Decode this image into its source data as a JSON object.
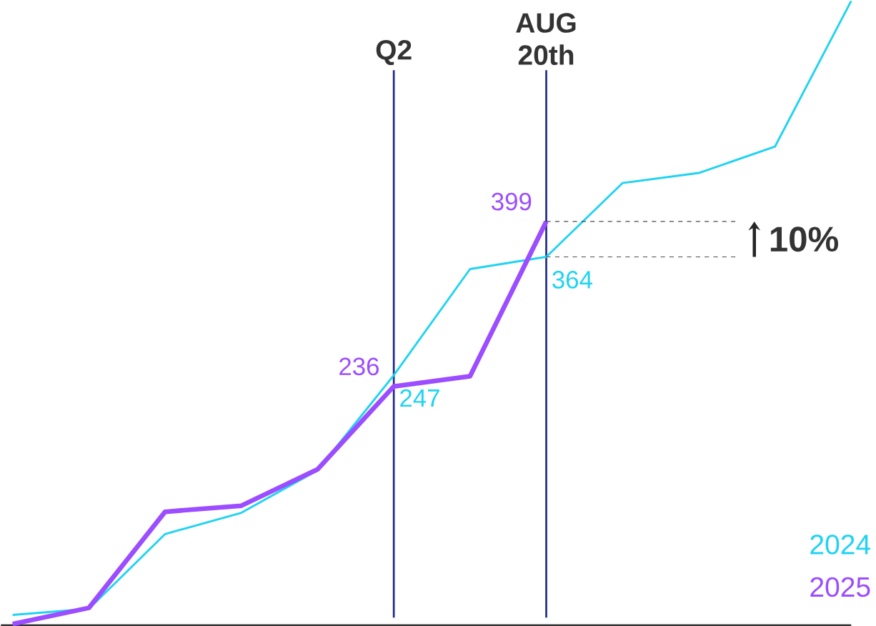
{
  "chart_data": {
    "type": "line",
    "categories": [
      null,
      null,
      null,
      null,
      null,
      null,
      null,
      null,
      null,
      null,
      null,
      null
    ],
    "series": [
      {
        "name": "2024",
        "color": "#1fd3f2",
        "values": [
          10,
          16,
          90,
          111,
          153,
          247,
          352,
          364,
          437,
          447,
          473,
          617
        ],
        "value_labels": [
          null,
          null,
          null,
          null,
          null,
          "247",
          null,
          "364",
          null,
          null,
          null,
          null
        ]
      },
      {
        "name": "2025",
        "color": "#9b4dff",
        "values": [
          1,
          17,
          112,
          118,
          154,
          236,
          246,
          399,
          null,
          null,
          null,
          null
        ],
        "value_labels": [
          null,
          null,
          null,
          null,
          null,
          "236",
          null,
          "399",
          null,
          null,
          null,
          null
        ]
      }
    ],
    "annotations": [
      "Q2",
      "AUG 20th",
      "10%"
    ],
    "legend": "bottom right"
  }
}
